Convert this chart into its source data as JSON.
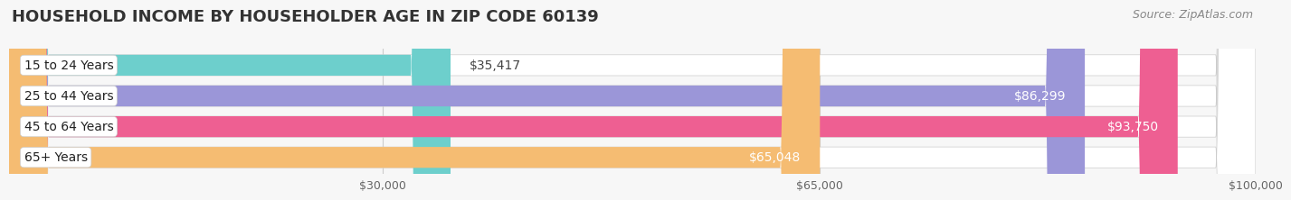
{
  "title": "HOUSEHOLD INCOME BY HOUSEHOLDER AGE IN ZIP CODE 60139",
  "source": "Source: ZipAtlas.com",
  "categories": [
    "15 to 24 Years",
    "25 to 44 Years",
    "45 to 64 Years",
    "65+ Years"
  ],
  "values": [
    35417,
    86299,
    93750,
    65048
  ],
  "bar_colors": [
    "#6dcfcc",
    "#9b96d8",
    "#ee5f92",
    "#f5bc72"
  ],
  "label_colors": [
    "#333333",
    "#ffffff",
    "#ffffff",
    "#333333"
  ],
  "xlim": [
    0,
    100000
  ],
  "xticks": [
    30000,
    65000,
    100000
  ],
  "xtick_labels": [
    "$30,000",
    "$65,000",
    "$100,000"
  ],
  "value_labels": [
    "$35,417",
    "$86,299",
    "$93,750",
    "$65,048"
  ],
  "background_color": "#f7f7f7",
  "bar_background_color": "#ebebeb",
  "title_fontsize": 13,
  "source_fontsize": 9,
  "category_fontsize": 10,
  "value_fontsize": 10,
  "tick_fontsize": 9
}
